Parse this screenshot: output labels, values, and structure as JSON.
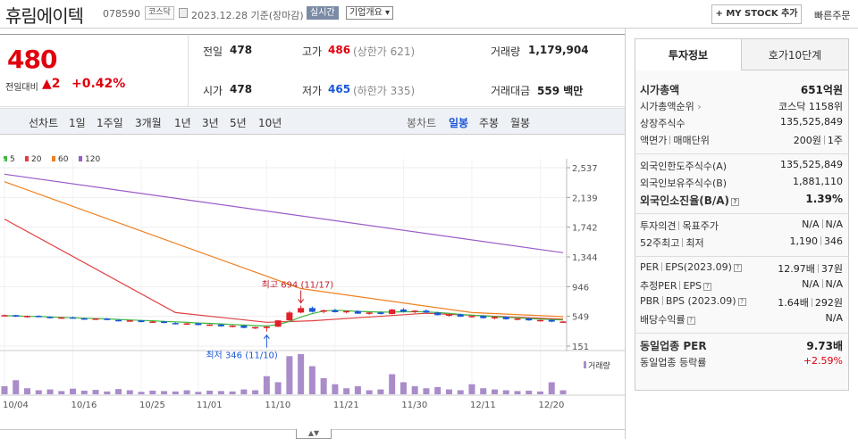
{
  "header": {
    "title": "휴림에이텍",
    "code": "078590",
    "market": "코스닥",
    "date": "2023.12.28 기준(장마감)",
    "realtime": "실시간",
    "company_info": "기업개요",
    "company_info_arrow": "▾",
    "mystock": "+ MY STOCK 추가",
    "quick_order": "빠른주문"
  },
  "price": {
    "current": "480",
    "change_label": "전일대비",
    "change_arrow": "▲",
    "change": "2",
    "change_pct": "+0.42%"
  },
  "stats": {
    "prev_label": "전일",
    "prev": "478",
    "high_label": "고가",
    "high": "486",
    "upper_label": "(상한가 621)",
    "volume_label": "거래량",
    "volume": "1,179,904",
    "open_label": "시가",
    "open": "478",
    "low_label": "저가",
    "low": "465",
    "lower_label": "(하한가 335)",
    "amount_label": "거래대금",
    "amount": "559",
    "amount_unit": "백만"
  },
  "periods": {
    "line_label": "선차트",
    "items": [
      "1일",
      "1주일",
      "3개월",
      "1년",
      "3년",
      "5년",
      "10년"
    ],
    "candle_label": "봉차트",
    "candle_items": [
      "일봉",
      "주봉",
      "월봉"
    ],
    "active_candle": "일봉"
  },
  "chart_data": {
    "type": "candlestick",
    "legend": [
      {
        "name": "5",
        "color": "#3cb83c"
      },
      {
        "name": "20",
        "color": "#e04040"
      },
      {
        "name": "60",
        "color": "#f08020"
      },
      {
        "name": "120",
        "color": "#9a5cc8"
      }
    ],
    "y_ticks": [
      "2,537",
      "2,139",
      "1,742",
      "1,344",
      "946",
      "549",
      "151"
    ],
    "y_tick_values": [
      2537,
      2139,
      1742,
      1344,
      946,
      549,
      151
    ],
    "x_labels": [
      "10/04",
      "10/16",
      "10/25",
      "11/01",
      "11/10",
      "11/21",
      "11/30",
      "12/11",
      "12/20"
    ],
    "x_label_index": [
      0,
      6,
      12,
      17,
      23,
      29,
      35,
      41,
      47
    ],
    "ylim": [
      151,
      2537
    ],
    "high_annot": "최고 694 (11/17)",
    "high_index": 26,
    "high_value": 694,
    "low_annot": "최저 346 (11/10)",
    "low_index": 23,
    "low_value": 346,
    "volume_label": "거래량",
    "candles": [
      [
        560,
        575,
        548,
        565
      ],
      [
        565,
        570,
        540,
        545
      ],
      [
        545,
        560,
        530,
        555
      ],
      [
        555,
        565,
        540,
        542
      ],
      [
        542,
        548,
        520,
        525
      ],
      [
        525,
        540,
        515,
        535
      ],
      [
        535,
        545,
        520,
        522
      ],
      [
        522,
        530,
        505,
        510
      ],
      [
        510,
        525,
        500,
        520
      ],
      [
        520,
        528,
        495,
        500
      ],
      [
        500,
        510,
        480,
        485
      ],
      [
        485,
        500,
        475,
        495
      ],
      [
        495,
        500,
        470,
        472
      ],
      [
        472,
        485,
        460,
        480
      ],
      [
        480,
        488,
        455,
        460
      ],
      [
        460,
        470,
        440,
        445
      ],
      [
        445,
        460,
        435,
        455
      ],
      [
        455,
        465,
        430,
        432
      ],
      [
        432,
        445,
        420,
        440
      ],
      [
        440,
        448,
        410,
        415
      ],
      [
        415,
        430,
        400,
        425
      ],
      [
        425,
        435,
        390,
        395
      ],
      [
        395,
        410,
        380,
        405
      ],
      [
        405,
        420,
        346,
        410
      ],
      [
        410,
        500,
        405,
        495
      ],
      [
        495,
        620,
        480,
        600
      ],
      [
        600,
        694,
        590,
        660
      ],
      [
        660,
        680,
        600,
        610
      ],
      [
        610,
        640,
        590,
        630
      ],
      [
        630,
        650,
        600,
        605
      ],
      [
        605,
        625,
        590,
        620
      ],
      [
        620,
        630,
        580,
        585
      ],
      [
        585,
        610,
        570,
        600
      ],
      [
        600,
        615,
        575,
        580
      ],
      [
        580,
        650,
        575,
        640
      ],
      [
        640,
        660,
        600,
        610
      ],
      [
        610,
        630,
        590,
        625
      ],
      [
        625,
        640,
        595,
        600
      ],
      [
        600,
        610,
        560,
        565
      ],
      [
        565,
        580,
        545,
        575
      ],
      [
        575,
        585,
        540,
        545
      ],
      [
        545,
        560,
        530,
        555
      ],
      [
        555,
        565,
        520,
        525
      ],
      [
        525,
        545,
        510,
        540
      ],
      [
        540,
        550,
        505,
        510
      ],
      [
        510,
        525,
        495,
        520
      ],
      [
        520,
        530,
        490,
        495
      ],
      [
        495,
        505,
        480,
        500
      ],
      [
        500,
        510,
        470,
        478
      ],
      [
        478,
        486,
        465,
        480
      ]
    ],
    "volumes": [
      20,
      35,
      15,
      10,
      12,
      8,
      14,
      9,
      11,
      7,
      13,
      10,
      6,
      9,
      8,
      7,
      10,
      6,
      9,
      8,
      7,
      12,
      10,
      45,
      30,
      95,
      100,
      70,
      40,
      25,
      15,
      20,
      10,
      12,
      50,
      30,
      20,
      15,
      18,
      12,
      10,
      25,
      15,
      12,
      10,
      8,
      9,
      7,
      30,
      10
    ],
    "ma5": [
      558,
      555,
      550,
      548,
      540,
      535,
      530,
      525,
      520,
      515,
      508,
      500,
      495,
      490,
      482,
      475,
      468,
      460,
      455,
      448,
      440,
      432,
      425,
      420,
      440,
      480,
      540,
      585,
      620,
      630,
      625,
      615,
      610,
      605,
      605,
      610,
      612,
      608,
      600,
      590,
      575,
      565,
      555,
      545,
      535,
      530,
      520,
      512,
      505,
      500
    ],
    "ma20_points": [
      [
        0,
        1850
      ],
      [
        15,
        600
      ],
      [
        23,
        470
      ],
      [
        27,
        490
      ],
      [
        31,
        530
      ],
      [
        37,
        590
      ],
      [
        49,
        510
      ]
    ],
    "ma60_points": [
      [
        0,
        2350
      ],
      [
        26,
        920
      ],
      [
        41,
        600
      ],
      [
        49,
        545
      ]
    ],
    "ma120_points": [
      [
        0,
        2450
      ],
      [
        49,
        1400
      ]
    ]
  },
  "side": {
    "tab_invest": "투자정보",
    "tab_hoga": "호가10단계",
    "rows1": [
      {
        "l": "시가총액",
        "v": "651억원",
        "bold": true
      },
      {
        "l": "시가총액순위",
        "v": "코스닥 1158위",
        "arrow": true
      },
      {
        "l": "상장주식수",
        "v": "135,525,849"
      },
      {
        "l": "액면가",
        "l2": "매매단위",
        "v": "200원",
        "v2": "1주"
      }
    ],
    "rows2": [
      {
        "l": "외국인한도주식수(A)",
        "v": "135,525,849"
      },
      {
        "l": "외국인보유주식수(B)",
        "v": "1,881,110"
      },
      {
        "l": "외국인소진율(B/A)",
        "v": "1.39%",
        "bold": true,
        "q": true
      }
    ],
    "rows3": [
      {
        "l": "투자의견",
        "l2": "목표주가",
        "v": "N/A",
        "v2": "N/A"
      },
      {
        "l": "52주최고",
        "l2": "최저",
        "v": "1,190",
        "v2": "346"
      }
    ],
    "rows4": [
      {
        "l": "PER",
        "l2": "EPS(2023.09)",
        "v": "12.97배",
        "v2": "37원",
        "q": true
      },
      {
        "l": "추정PER",
        "l2": "EPS",
        "v": "N/A",
        "v2": "N/A",
        "q": true
      },
      {
        "l": "PBR",
        "l2": "BPS (2023.09)",
        "v": "1.64배",
        "v2": "292원",
        "q": true
      },
      {
        "l": "배당수익률",
        "v": "N/A",
        "q": true
      }
    ],
    "rows5": [
      {
        "l": "동일업종 PER",
        "v": "9.73배",
        "bold": true
      },
      {
        "l": "동일업종 등락률",
        "v": "+2.59%",
        "red": true
      }
    ]
  }
}
